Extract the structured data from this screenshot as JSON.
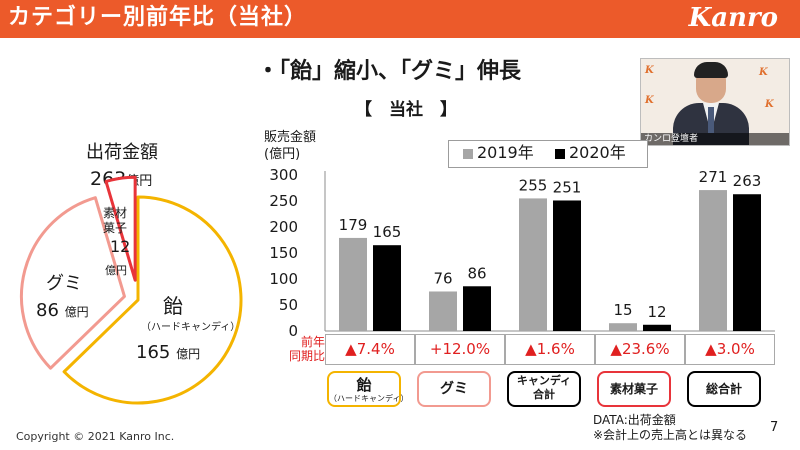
{
  "header": {
    "title": "カテゴリー別前年比（当社）",
    "logo": "Kanro",
    "bg_color": "#ec5a2a"
  },
  "subtitle": "・「飴」縮小、「グミ」伸長",
  "section_title": "【　当社　】",
  "video": {
    "caption": "カンロ登壇者"
  },
  "pie": {
    "title": "出荷金額",
    "total_value": "263",
    "total_unit": "億円",
    "slices": [
      {
        "name": "飴",
        "sub": "（ハードキャンディ）",
        "value": 165,
        "unit": "億円",
        "color": "#f4b400"
      },
      {
        "name": "グミ",
        "sub": "",
        "value": 86,
        "unit": "億円",
        "color": "#f29a90"
      },
      {
        "name": "素材菓子",
        "name_lines": [
          "素材",
          "菓子"
        ],
        "sub": "",
        "value": 12,
        "unit": "億円",
        "color": "#e8343a"
      }
    ]
  },
  "chart_data": {
    "type": "bar",
    "title": "",
    "ylabel": "販売金額\n(億円)",
    "ylim": [
      0,
      300
    ],
    "yticks": [
      0,
      50,
      100,
      150,
      200,
      250,
      300
    ],
    "categories": [
      "飴",
      "グミ",
      "キャンディ合計",
      "素材菓子",
      "総合計"
    ],
    "series": [
      {
        "name": "2019年",
        "color": "#a6a6a6",
        "values": [
          179,
          76,
          255,
          15,
          271
        ]
      },
      {
        "name": "2020年",
        "color": "#000000",
        "values": [
          165,
          86,
          251,
          12,
          263
        ]
      }
    ],
    "legend": "top-right",
    "yoy_label": "前年\n同期比",
    "yoy": [
      "▲7.4%",
      "+12.0%",
      "▲1.6%",
      "▲23.6%",
      "▲3.0%"
    ]
  },
  "category_labels": [
    {
      "main": "飴",
      "sub": "（ハードキャンディ）",
      "border": "#f4b400"
    },
    {
      "main": "グミ",
      "sub": "",
      "border": "#f29a90"
    },
    {
      "main": "キャンディ\n合計",
      "sub": "",
      "border": "#000000"
    },
    {
      "main": "素材菓子",
      "sub": "",
      "border": "#e8343a"
    },
    {
      "main": "総合計",
      "sub": "",
      "border": "#000000"
    }
  ],
  "note": {
    "line1": "DATA:出荷金額",
    "line2": "※会計上の売上高とは異なる"
  },
  "copyright": "Copyright © 2021 Kanro Inc.",
  "page_number": "7"
}
